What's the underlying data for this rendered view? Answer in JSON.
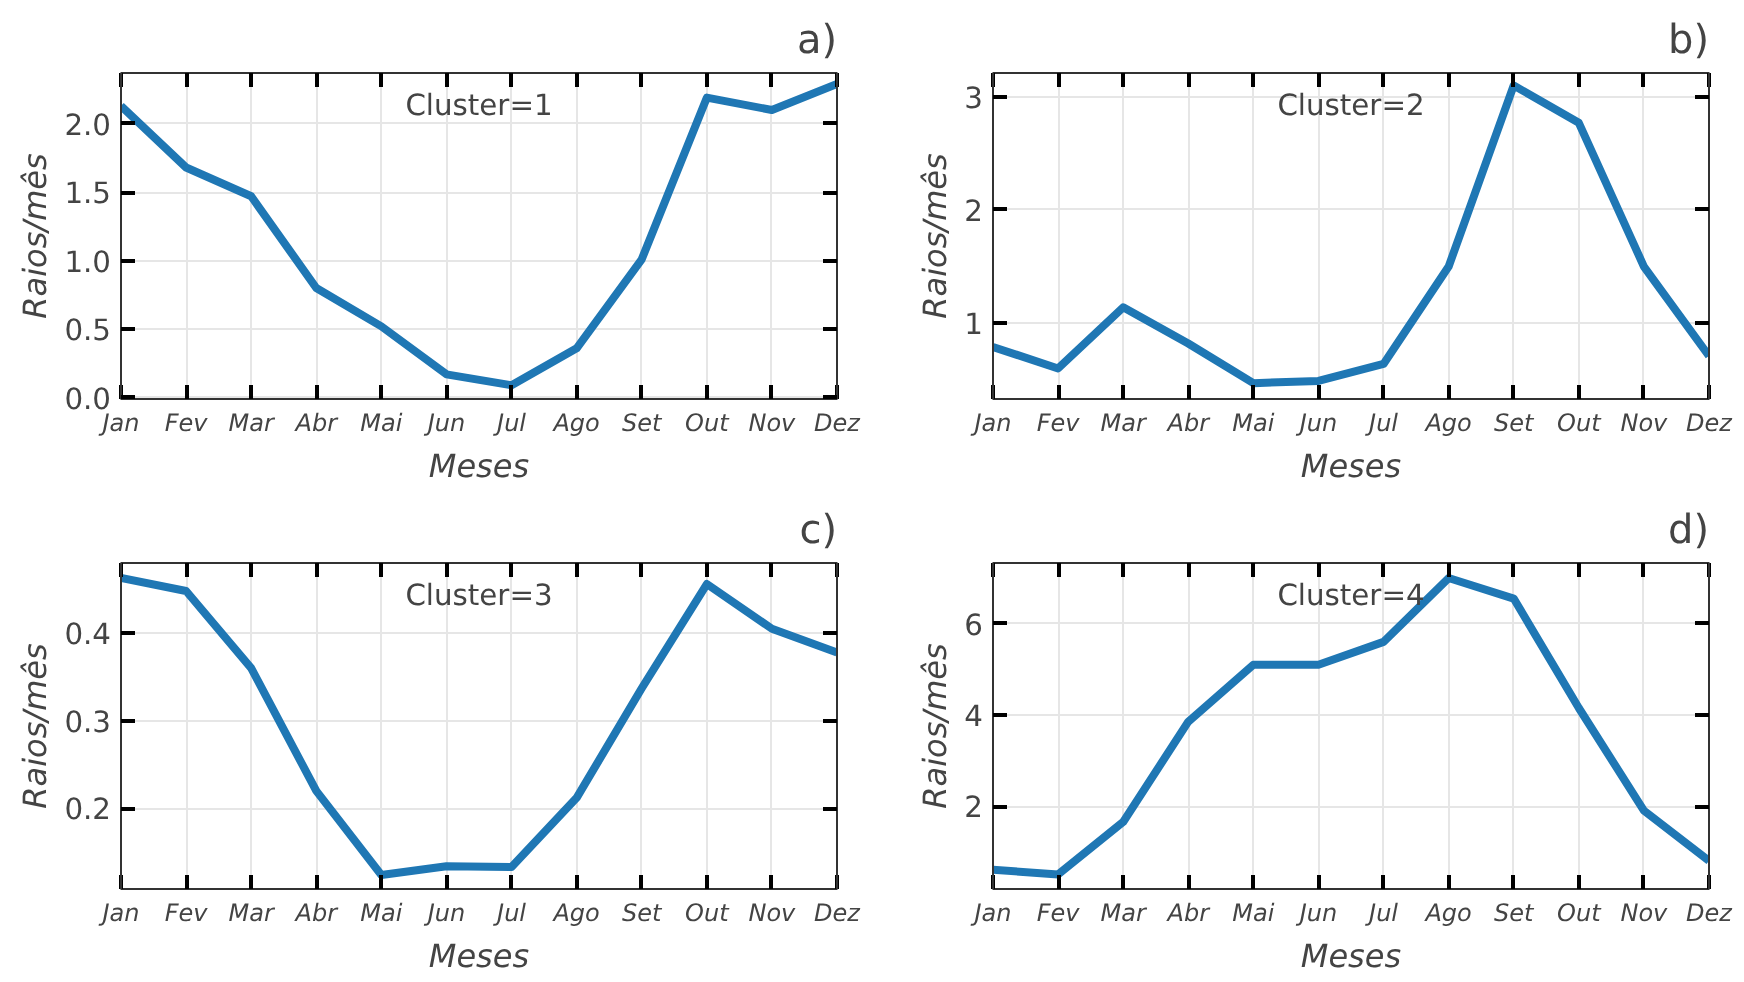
{
  "chart_data": [
    {
      "type": "line",
      "title": "a)",
      "xlabel": "Meses",
      "ylabel": "Raios/mês",
      "annotations": [
        "Cluster=1"
      ],
      "categories": [
        "Jan",
        "Fev",
        "Mar",
        "Abr",
        "Mai",
        "Jun",
        "Jul",
        "Ago",
        "Set",
        "Out",
        "Nov",
        "Dez"
      ],
      "series": [
        {
          "color": "#1f77b4",
          "values": [
            2.13,
            1.68,
            1.47,
            0.8,
            0.52,
            0.17,
            0.09,
            0.36,
            1.01,
            2.19,
            2.1,
            2.29
          ]
        }
      ],
      "ylim": [
        -0.01,
        2.37
      ],
      "yticks": [
        {
          "value": 0,
          "label": "0.0"
        },
        0.5,
        {
          "value": 1,
          "label": "1.0"
        },
        1.5,
        {
          "value": 2,
          "label": "2.0"
        }
      ],
      "grid": true,
      "line_style": "solid"
    },
    {
      "type": "line",
      "title": "b)",
      "xlabel": "Meses",
      "ylabel": "Raios/mês",
      "annotations": [
        "Cluster=2"
      ],
      "categories": [
        "Jan",
        "Fev",
        "Mar",
        "Abr",
        "Mai",
        "Jun",
        "Jul",
        "Ago",
        "Set",
        "Out",
        "Nov",
        "Dez"
      ],
      "series": [
        {
          "color": "#1f77b4",
          "values": [
            0.79,
            0.6,
            1.14,
            0.82,
            0.47,
            0.49,
            0.64,
            1.5,
            3.1,
            2.77,
            1.5,
            0.71
          ]
        }
      ],
      "ylim": [
        0.33,
        3.21
      ],
      "yticks": [
        1,
        2,
        3
      ],
      "grid": true,
      "line_style": "solid"
    },
    {
      "type": "line",
      "title": "c)",
      "xlabel": "Meses",
      "ylabel": "Raios/mês",
      "annotations": [
        "Cluster=3"
      ],
      "categories": [
        "Jan",
        "Fev",
        "Mar",
        "Abr",
        "Mai",
        "Jun",
        "Jul",
        "Ago",
        "Set",
        "Out",
        "Nov",
        "Dez"
      ],
      "series": [
        {
          "color": "#1f77b4",
          "values": [
            0.463,
            0.448,
            0.36,
            0.22,
            0.124,
            0.134,
            0.133,
            0.212,
            0.337,
            0.456,
            0.405,
            0.378
          ]
        }
      ],
      "ylim": [
        0.108,
        0.48
      ],
      "yticks": [
        0.2,
        0.3,
        0.4
      ],
      "grid": true,
      "line_style": "solid"
    },
    {
      "type": "line",
      "title": "d)",
      "xlabel": "Meses",
      "ylabel": "Raios/mês",
      "annotations": [
        "Cluster=4"
      ],
      "categories": [
        "Jan",
        "Fev",
        "Mar",
        "Abr",
        "Mai",
        "Jun",
        "Jul",
        "Ago",
        "Set",
        "Out",
        "Nov",
        "Dez"
      ],
      "series": [
        {
          "color": "#1f77b4",
          "values": [
            0.6,
            0.5,
            1.65,
            3.85,
            5.1,
            5.1,
            5.6,
            7.0,
            6.55,
            4.15,
            1.9,
            0.8
          ]
        }
      ],
      "ylim": [
        0.18,
        7.33
      ],
      "yticks": [
        2,
        4,
        6
      ],
      "grid": true,
      "line_style": "solid"
    }
  ]
}
